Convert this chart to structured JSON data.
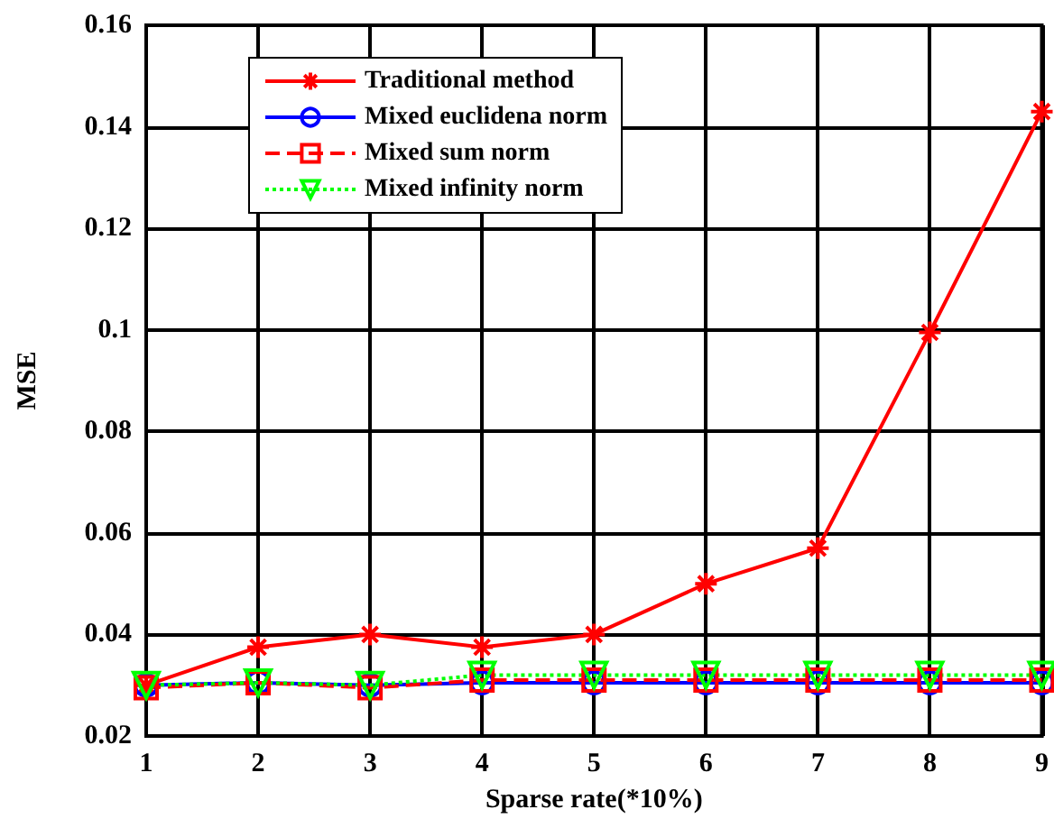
{
  "chart_data": {
    "type": "line",
    "xlabel": "Sparse rate(*10%)",
    "ylabel": "MSE",
    "x": [
      1,
      2,
      3,
      4,
      5,
      6,
      7,
      8,
      9
    ],
    "xlim": [
      1,
      9
    ],
    "xticks": [
      1,
      2,
      3,
      4,
      5,
      6,
      7,
      8,
      9
    ],
    "ylim": [
      0.02,
      0.16
    ],
    "yticks": [
      0.02,
      0.04,
      0.06,
      0.08,
      0.1,
      0.12,
      0.14,
      0.16
    ],
    "grid": true,
    "legend": "top left",
    "series": [
      {
        "name": "Traditional method",
        "color": "#ff0000",
        "marker": "cross",
        "line_style": "solid",
        "values": [
          0.03,
          0.0375,
          0.04,
          0.0375,
          0.04,
          0.05,
          0.057,
          0.0995,
          0.143
        ]
      },
      {
        "name": "Mixed euclidena norm",
        "color": "#0000ff",
        "marker": "circle",
        "line_style": "solid",
        "values": [
          0.03,
          0.0305,
          0.03,
          0.0305,
          0.0305,
          0.0305,
          0.0305,
          0.0305,
          0.0305
        ]
      },
      {
        "name": "Mixed sum norm",
        "color": "#ff0000",
        "marker": "square",
        "line_style": "dashed",
        "values": [
          0.0295,
          0.0305,
          0.0295,
          0.031,
          0.031,
          0.031,
          0.031,
          0.031,
          0.031
        ]
      },
      {
        "name": "Mixed infinity norm",
        "color": "#00ff00",
        "marker": "triangle",
        "line_style": "dotted",
        "values": [
          0.03,
          0.0305,
          0.03,
          0.032,
          0.032,
          0.032,
          0.032,
          0.032,
          0.032
        ]
      }
    ]
  }
}
